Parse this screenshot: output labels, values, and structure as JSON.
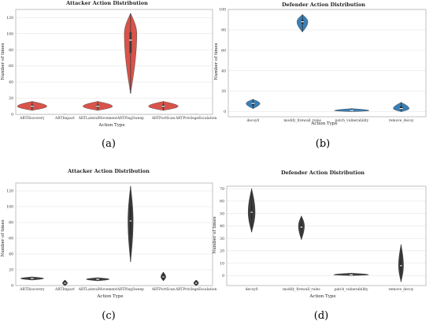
{
  "captions": [
    "(a)",
    "(b)",
    "(c)",
    "(d)"
  ],
  "chart_data": [
    {
      "type": "violin",
      "title": "Attacker Action Distribution",
      "xlabel": "Action Type",
      "ylabel": "Number of times",
      "categories": [
        "ARTDiscovery",
        "ARTImpact",
        "ARTLateralMovement",
        "ARTPingSweep",
        "ARTPortScan",
        "ARTPrivilegeEscalation"
      ],
      "ylim": [
        0,
        130
      ],
      "yticks": [
        0,
        20,
        40,
        60,
        80,
        100,
        120
      ],
      "fill_color": "#d9534a",
      "box_color": "#3a3a3a",
      "violins": [
        {
          "min": 5,
          "q1": 8,
          "median": 10,
          "q3": 12,
          "max": 16,
          "peak": 10,
          "width": 0.9
        },
        {
          "min": 1,
          "q1": 1,
          "median": 1,
          "q3": 1,
          "max": 1,
          "peak": 1,
          "width": 0.9
        },
        {
          "min": 5,
          "q1": 8,
          "median": 10,
          "q3": 12,
          "max": 16,
          "peak": 10,
          "width": 0.9
        },
        {
          "min": 26,
          "q1": 76,
          "median": 92,
          "q3": 102,
          "max": 125,
          "peak": 100,
          "width": 0.38
        },
        {
          "min": 5,
          "q1": 8,
          "median": 10,
          "q3": 12,
          "max": 16,
          "peak": 10,
          "width": 0.9
        },
        {
          "min": 1,
          "q1": 1,
          "median": 1,
          "q3": 1,
          "max": 1,
          "peak": 1,
          "width": 0.9
        }
      ]
    },
    {
      "type": "violin",
      "title": "Defender Action Distribution",
      "xlabel": "Action Type",
      "ylabel": "Number of times",
      "categories": [
        "decoy0",
        "modify_firewall_rules",
        "patch_vulnerability",
        "remove_decoy"
      ],
      "ylim": [
        -5,
        100
      ],
      "yticks": [
        0,
        20,
        40,
        60,
        80,
        100
      ],
      "fill_color": "#3a7fb5",
      "box_color": "#2a2a2a",
      "violins": [
        {
          "min": 3,
          "q1": 6,
          "median": 8,
          "q3": 9,
          "max": 12,
          "peak": 8,
          "width": 0.28
        },
        {
          "min": 78,
          "q1": 86,
          "median": 88,
          "q3": 90,
          "max": 95,
          "peak": 88,
          "width": 0.22
        },
        {
          "min": 0,
          "q1": 0.5,
          "median": 1,
          "q3": 1.5,
          "max": 3,
          "peak": 1,
          "width": 0.7
        },
        {
          "min": 0,
          "q1": 2,
          "median": 3,
          "q3": 5,
          "max": 9,
          "peak": 3,
          "width": 0.32
        }
      ]
    },
    {
      "type": "violin",
      "title": "Attacker Action Distribution",
      "xlabel": "Action Type",
      "ylabel": "Number of times",
      "categories": [
        "ARTDiscovery",
        "ARTImpact",
        "ARTLateralMovement",
        "ARTPingSweep",
        "ARTPortScan",
        "ARTPrivilegeEscalation"
      ],
      "ylim": [
        0,
        130
      ],
      "yticks": [
        0,
        20,
        40,
        60,
        80,
        100,
        120
      ],
      "fill_color": "#3d3d3d",
      "box_color": "#2a2a2a",
      "violins": [
        {
          "min": 7,
          "q1": 8,
          "median": 9,
          "q3": 10,
          "max": 11,
          "peak": 9,
          "width": 0.7
        },
        {
          "min": 0,
          "q1": 2,
          "median": 3,
          "q3": 4,
          "max": 7,
          "peak": 3,
          "width": 0.15
        },
        {
          "min": 6,
          "q1": 7,
          "median": 8,
          "q3": 9,
          "max": 10,
          "peak": 8,
          "width": 0.7
        },
        {
          "min": 30,
          "q1": 65,
          "median": 82,
          "q3": 100,
          "max": 126,
          "peak": 82,
          "width": 0.16
        },
        {
          "min": 6,
          "q1": 9,
          "median": 11,
          "q3": 14,
          "max": 17,
          "peak": 11,
          "width": 0.15
        },
        {
          "min": 0,
          "q1": 2,
          "median": 3,
          "q3": 4,
          "max": 7,
          "peak": 3,
          "width": 0.15
        }
      ]
    },
    {
      "type": "violin",
      "title": "Defender Action Distribution",
      "xlabel": "Action Type",
      "ylabel": "Number of times",
      "categories": [
        "decoy0",
        "modify_firewall_rules",
        "patch_vulnerability",
        "remove_decoy"
      ],
      "ylim": [
        -8,
        72
      ],
      "yticks": [
        0,
        10,
        20,
        30,
        40,
        50,
        60,
        70
      ],
      "fill_color": "#3d3d3d",
      "box_color": "#2a2a2a",
      "violins": [
        {
          "min": 35,
          "q1": 46,
          "median": 51,
          "q3": 56,
          "max": 70,
          "peak": 51,
          "width": 0.14
        },
        {
          "min": 29,
          "q1": 36,
          "median": 39,
          "q3": 42,
          "max": 48,
          "peak": 40,
          "width": 0.12
        },
        {
          "min": 0,
          "q1": 0.3,
          "median": 0.7,
          "q3": 1,
          "max": 2,
          "peak": 0.7,
          "width": 0.7
        },
        {
          "min": -5,
          "q1": 4,
          "median": 8,
          "q3": 12,
          "max": 25,
          "peak": 8,
          "width": 0.1
        }
      ]
    }
  ]
}
